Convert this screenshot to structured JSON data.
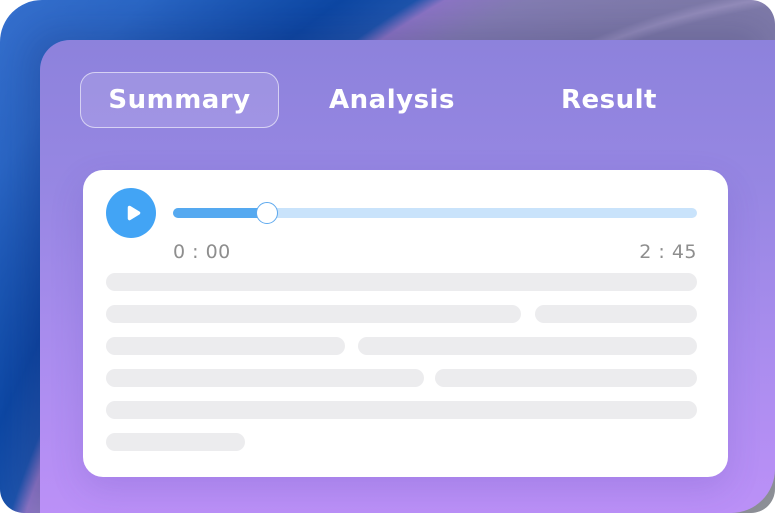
{
  "tabs": [
    {
      "label": "Summary",
      "active": true
    },
    {
      "label": "Analysis",
      "active": false
    },
    {
      "label": "Result",
      "active": false
    }
  ],
  "player": {
    "current_time": "0 : 00",
    "total_time": "2 : 45",
    "progress_percent": 18,
    "play_icon": "play-triangle-icon"
  },
  "skeleton_rows": [
    {
      "segments": [
        100
      ]
    },
    {
      "segments": [
        70.2,
        27.4
      ]
    },
    {
      "segments": [
        40.4,
        57.4
      ]
    },
    {
      "segments": [
        53.8,
        44.3
      ]
    },
    {
      "segments": [
        100
      ]
    },
    {
      "segments": [
        23.5
      ]
    }
  ],
  "colors": {
    "bg_gray": "#8e9197",
    "bg_lavender": "#7d79a8",
    "bg_purple_fringe": "#8b74c4",
    "bg_navy": "#0d47a3",
    "bg_blue": "#3b74d2",
    "panel_top": "#8d82dc",
    "panel_bottom": "#bb90f7",
    "tab_text": "#ffffff",
    "card_bg": "#ffffff",
    "play_blue": "#42a4f5",
    "track_fill": "#55a9f0",
    "track_light": "#c9e3fb",
    "thumb_border": "#5ea9ee",
    "time_gray": "#8e8e8e",
    "skeleton_gray": "#ececee"
  }
}
